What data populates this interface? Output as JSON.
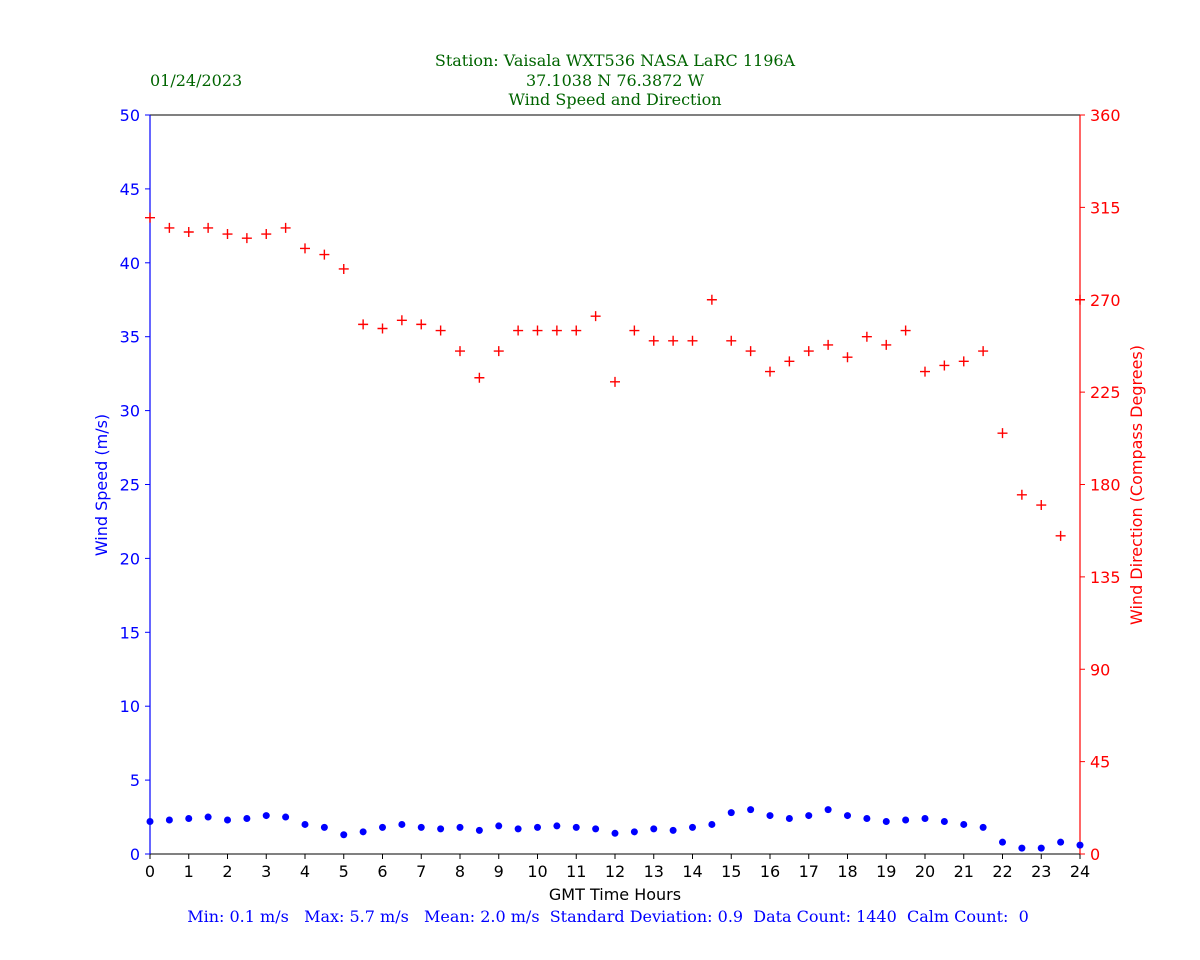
{
  "header": {
    "station_line": "Station:  Vaisala WXT536  NASA LaRC 1196A",
    "coords_line": "37.1038 N 76.3872 W",
    "subtitle": "Wind Speed and Direction",
    "date": "01/24/2023"
  },
  "footer": {
    "stats_line": "Min: 0.1 m/s   Max: 5.7 m/s   Mean: 2.0 m/s  Standard Deviation: 0.9  Data Count: 1440  Calm Count:  0"
  },
  "colors": {
    "speed": "#0000ff",
    "direction": "#ff0000",
    "title": "#006400"
  },
  "chart_data": {
    "type": "scatter",
    "title": "Station:  Vaisala WXT536  NASA LaRC 1196A / 37.1038 N 76.3872 W / Wind Speed and Direction",
    "xlabel": "GMT Time Hours",
    "ylabel": "Wind Speed (m/s)",
    "y2label": "Wind Direction (Compass Degrees)",
    "xlim": [
      0,
      24
    ],
    "ylim": [
      0,
      50
    ],
    "y2lim": [
      0,
      360
    ],
    "x_ticks": [
      "0",
      "1",
      "2",
      "3",
      "4",
      "5",
      "6",
      "7",
      "8",
      "9",
      "10",
      "11",
      "12",
      "13",
      "14",
      "15",
      "16",
      "17",
      "18",
      "19",
      "20",
      "21",
      "22",
      "23",
      "24"
    ],
    "y_ticks": [
      "0",
      "5",
      "10",
      "15",
      "20",
      "25",
      "30",
      "35",
      "40",
      "45",
      "50"
    ],
    "y2_ticks": [
      "0",
      "45",
      "90",
      "135",
      "180",
      "225",
      "270",
      "315",
      "360"
    ],
    "grid": false,
    "series": [
      {
        "name": "Wind Speed",
        "axis": "left",
        "marker": "dot",
        "x": [
          0.0,
          0.5,
          1.0,
          1.5,
          2.0,
          2.5,
          3.0,
          3.5,
          4.0,
          4.5,
          5.0,
          5.5,
          6.0,
          6.5,
          7.0,
          7.5,
          8.0,
          8.5,
          9.0,
          9.5,
          10.0,
          10.5,
          11.0,
          11.5,
          12.0,
          12.5,
          13.0,
          13.5,
          14.0,
          14.5,
          15.0,
          15.5,
          16.0,
          16.5,
          17.0,
          17.5,
          18.0,
          18.5,
          19.0,
          19.5,
          20.0,
          20.5,
          21.0,
          21.5,
          22.0,
          22.5,
          23.0,
          23.5,
          24.0
        ],
        "values": [
          2.2,
          2.3,
          2.4,
          2.5,
          2.3,
          2.4,
          2.6,
          2.5,
          2.0,
          1.8,
          1.3,
          1.5,
          1.8,
          2.0,
          1.8,
          1.7,
          1.8,
          1.6,
          1.9,
          1.7,
          1.8,
          1.9,
          1.8,
          1.7,
          1.4,
          1.5,
          1.7,
          1.6,
          1.8,
          2.0,
          2.8,
          3.0,
          2.6,
          2.4,
          2.6,
          3.0,
          2.6,
          2.4,
          2.2,
          2.3,
          2.4,
          2.2,
          2.0,
          1.8,
          0.8,
          0.4,
          0.4,
          0.8,
          0.6
        ]
      },
      {
        "name": "Wind Direction",
        "axis": "right",
        "marker": "plus",
        "x": [
          0.0,
          0.5,
          1.0,
          1.5,
          2.0,
          2.5,
          3.0,
          3.5,
          4.0,
          4.5,
          5.0,
          5.5,
          6.0,
          6.5,
          7.0,
          7.5,
          8.0,
          8.5,
          9.0,
          9.5,
          10.0,
          10.5,
          11.0,
          11.5,
          12.0,
          12.5,
          13.0,
          13.5,
          14.0,
          14.5,
          15.0,
          15.5,
          16.0,
          16.5,
          17.0,
          17.5,
          18.0,
          18.5,
          19.0,
          19.5,
          20.0,
          20.5,
          21.0,
          21.5,
          22.0,
          22.5,
          23.0,
          23.5,
          24.0
        ],
        "values": [
          310,
          305,
          303,
          305,
          302,
          300,
          302,
          305,
          295,
          292,
          285,
          258,
          256,
          260,
          258,
          255,
          245,
          232,
          245,
          255,
          255,
          255,
          255,
          262,
          230,
          255,
          250,
          250,
          250,
          270,
          250,
          245,
          235,
          240,
          245,
          248,
          242,
          252,
          248,
          255,
          235,
          238,
          240,
          245,
          205,
          175,
          170,
          155,
          270
        ]
      }
    ]
  }
}
